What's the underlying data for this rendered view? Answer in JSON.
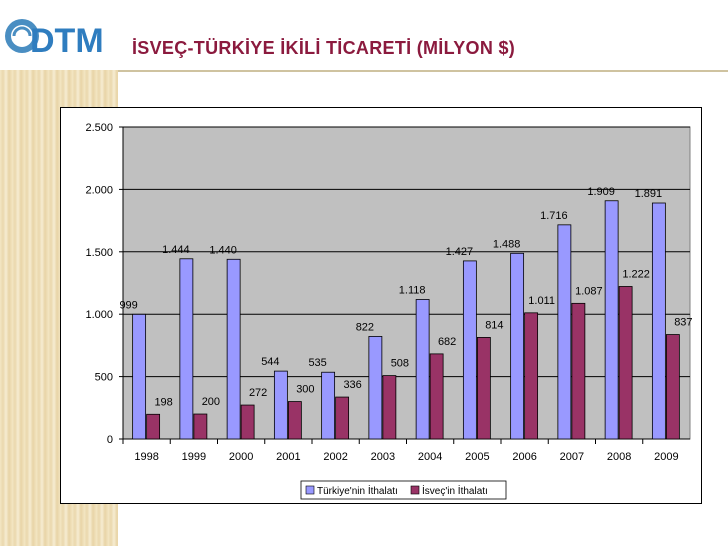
{
  "header": {
    "logo_text": "DTM",
    "title": "İSVEÇ-TÜRKİYE İKİLİ TİCARETİ (MİLYON $)"
  },
  "colors": {
    "series1": "#9999ff",
    "series2": "#993366",
    "plot_bg": "#c0c0c0",
    "title": "#8b1a3e"
  },
  "chart_data": {
    "type": "bar",
    "title": "",
    "xlabel": "",
    "ylabel": "",
    "categories": [
      "1998",
      "1999",
      "2000",
      "2001",
      "2002",
      "2003",
      "2004",
      "2005",
      "2006",
      "2007",
      "2008",
      "2009"
    ],
    "ylim": [
      0,
      2500
    ],
    "yticks": [
      0,
      500,
      1000,
      1500,
      2000,
      2500
    ],
    "ytick_labels": [
      "0",
      "500",
      "1.000",
      "1.500",
      "2.000",
      "2.500"
    ],
    "grid": true,
    "legend_position": "bottom",
    "series": [
      {
        "name": "Türkiye'nin İthalatı",
        "values": [
          999,
          1444,
          1440,
          544,
          535,
          822,
          1118,
          1427,
          1488,
          1716,
          1909,
          1891
        ],
        "labels": [
          "999",
          "1.444",
          "1.440",
          "544",
          "535",
          "822",
          "1.118",
          "1.427",
          "1.488",
          "1.716",
          "1.909",
          "1.891"
        ]
      },
      {
        "name": "İsveç'in İthalatı",
        "values": [
          198,
          200,
          272,
          300,
          336,
          508,
          682,
          814,
          1011,
          1087,
          1222,
          837
        ],
        "labels": [
          "198",
          "200",
          "272",
          "300",
          "336",
          "508",
          "682",
          "814",
          "1.011",
          "1.087",
          "1.222",
          "837"
        ]
      }
    ]
  }
}
